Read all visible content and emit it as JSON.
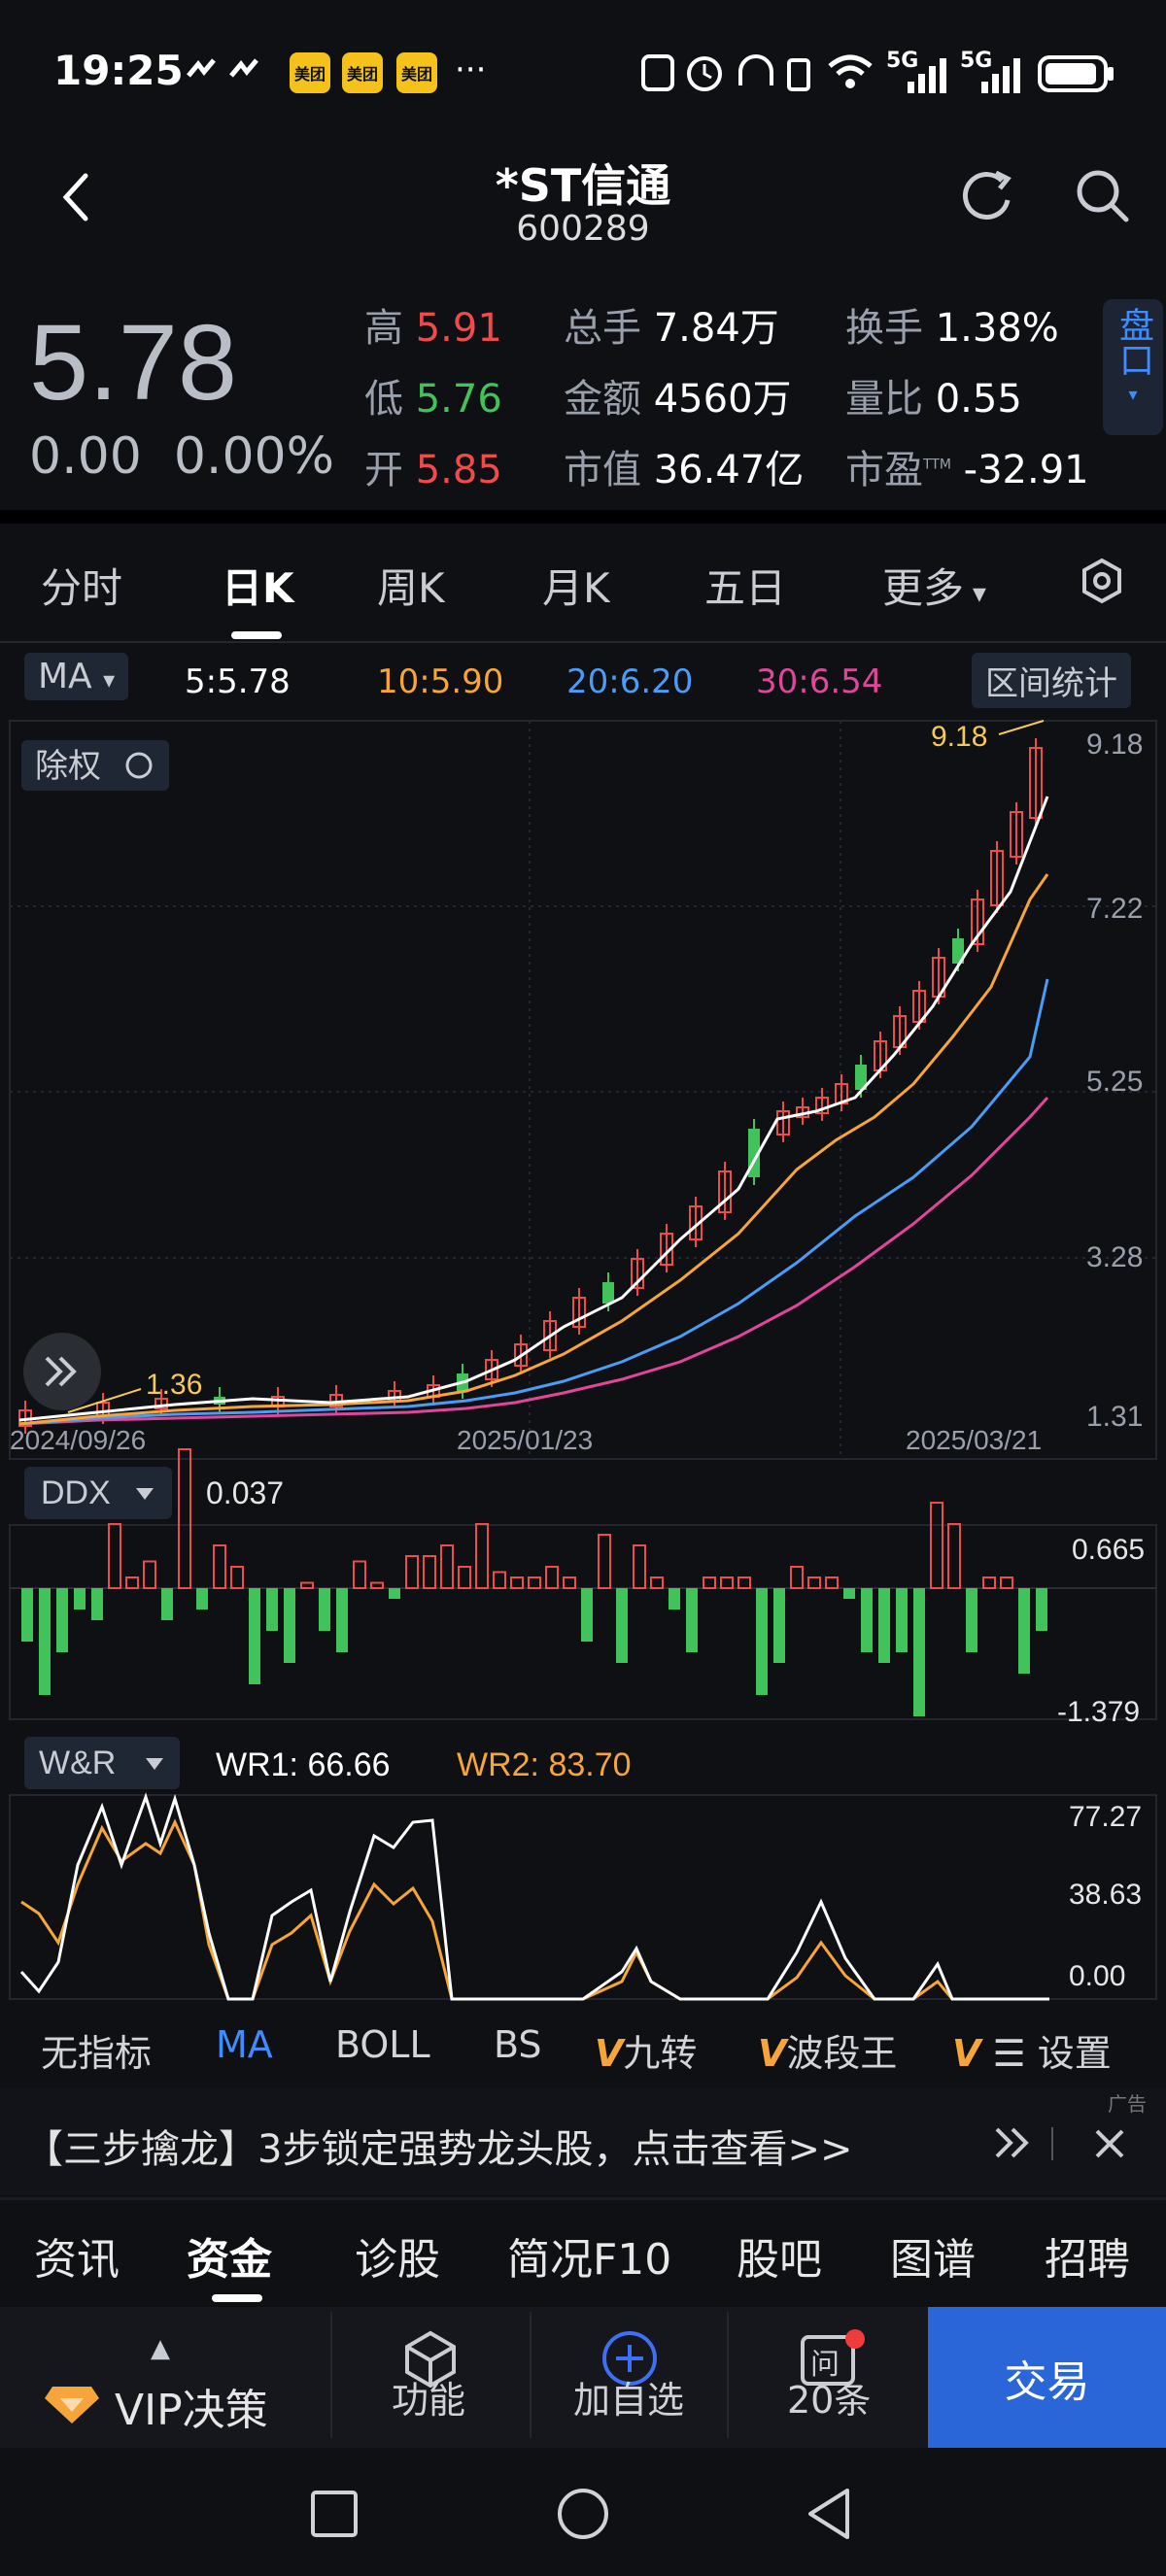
{
  "status_bar": {
    "time": "19:25",
    "app_badges": [
      "美团",
      "美团",
      "美团"
    ],
    "more": "···",
    "network_1": "5G",
    "network_2": "5G"
  },
  "header": {
    "title": "*ST信通",
    "code": "600289"
  },
  "quote": {
    "price": "5.78",
    "change": "0.00",
    "change_pct": "0.00%",
    "high_label": "高",
    "high": "5.91",
    "low_label": "低",
    "low": "5.76",
    "open_label": "开",
    "open": "5.85",
    "volume_label": "总手",
    "volume": "7.84万",
    "amount_label": "金额",
    "amount": "4560万",
    "mktcap_label": "市值",
    "mktcap": "36.47亿",
    "turnover_label": "换手",
    "turnover": "1.38%",
    "vol_ratio_label": "量比",
    "vol_ratio": "0.55",
    "pe_label": "市盈",
    "pe_sup": "TTM",
    "pe": "-32.91",
    "pankou_label": "盘口"
  },
  "period_tabs": [
    "分时",
    "日K",
    "周K",
    "月K",
    "五日",
    "更多"
  ],
  "ma_row": {
    "selector": "MA",
    "ma5": "5:5.78",
    "ma10": "10:5.90",
    "ma20": "20:6.20",
    "ma30": "30:6.54",
    "range_stats": "区间统计"
  },
  "kline": {
    "exright_label": "除权",
    "y_ticks": [
      "9.18",
      "7.22",
      "5.25",
      "3.28",
      "1.31"
    ],
    "x_labels": [
      "2024/09/26",
      "2025/01/23",
      "2025/03/21"
    ],
    "max_label": "9.18",
    "min_label": "1.36"
  },
  "ddx": {
    "selector": "DDX",
    "value": "0.037",
    "y_max": "0.665",
    "y_min": "-1.379"
  },
  "wr": {
    "selector": "W&R",
    "wr1": "WR1:  66.66",
    "wr2": "WR2:  83.70",
    "y_ticks": [
      "77.27",
      "38.63",
      "0.00"
    ]
  },
  "indicator_tabs": [
    "无指标",
    "MA",
    "BOLL",
    "BS",
    "九转",
    "波段王",
    "设置"
  ],
  "ad": {
    "text": "【三步擒龙】3步锁定强势龙头股，点击查看>>",
    "tag": "广告"
  },
  "info_tabs": [
    "资讯",
    "资金",
    "诊股",
    "简况F10",
    "股吧",
    "图谱",
    "招聘"
  ],
  "toolbar": {
    "vip": "VIP决策",
    "func": "功能",
    "add": "加自选",
    "msgs": "20条",
    "trade": "交易"
  },
  "colors": {
    "up": "#ef4b4b",
    "down": "#41c25b",
    "ma5": "#ffffff",
    "ma10": "#f5a53a",
    "ma20": "#4a9cf5",
    "ma30": "#e0479b",
    "accent": "#2b66d9"
  }
}
